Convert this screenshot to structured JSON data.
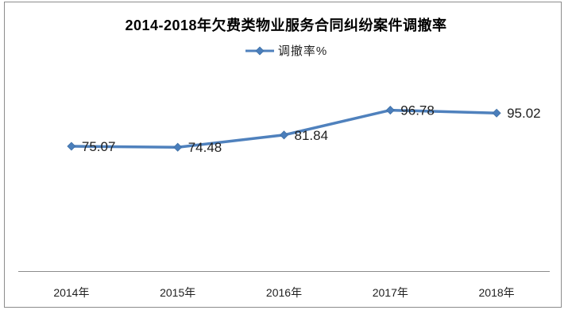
{
  "chart_data": {
    "type": "line",
    "title": "2014-2018年欠费类物业服务合同纠纷案件调撤率",
    "categories": [
      "2014年",
      "2015年",
      "2016年",
      "2017年",
      "2018年"
    ],
    "series": [
      {
        "name": "调撤率%",
        "values": [
          75.07,
          74.48,
          81.84,
          96.78,
          95.02
        ],
        "labels": [
          "75.07",
          "74.48",
          "81.84",
          "96.78",
          "95.02"
        ]
      }
    ],
    "xlabel": "",
    "ylabel": "",
    "ylim": [
      0,
      120
    ],
    "grid": false,
    "legend_position": "top",
    "marker": "diamond",
    "colors": {
      "series_line": "#4F81BD",
      "marker_fill": "#4A7EBB",
      "marker_edge": "#3E6FA5",
      "axis_line": "#8C8C8C",
      "chart_border": "#8C8C8C",
      "label_text": "#1F1F1F",
      "title_text": "#000000",
      "background": "#FFFFFF"
    }
  }
}
